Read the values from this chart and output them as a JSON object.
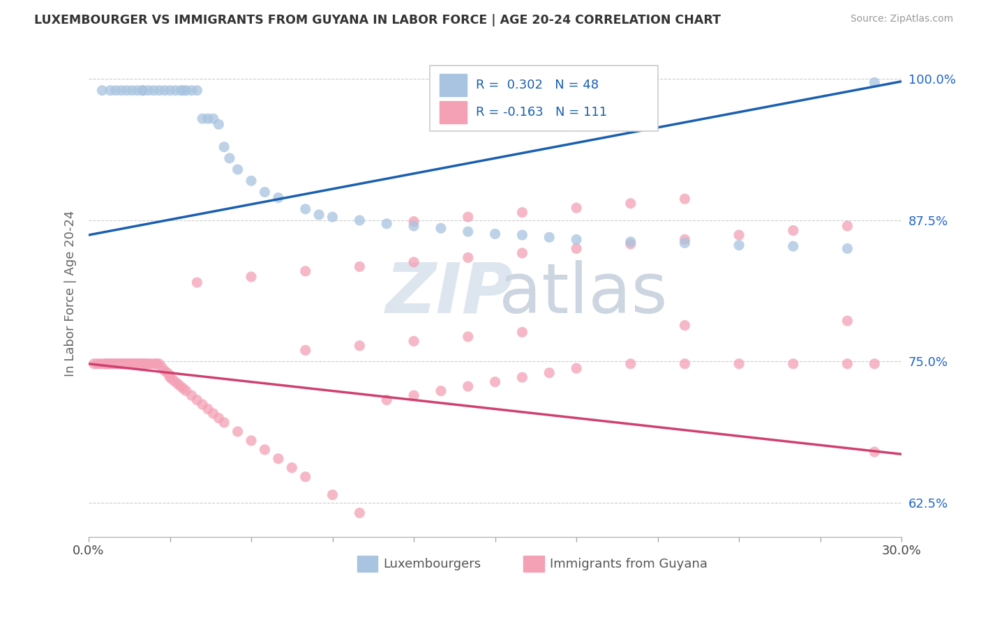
{
  "title": "LUXEMBOURGER VS IMMIGRANTS FROM GUYANA IN LABOR FORCE | AGE 20-24 CORRELATION CHART",
  "source": "Source: ZipAtlas.com",
  "ylabel": "In Labor Force | Age 20-24",
  "xlim": [
    0.0,
    0.3
  ],
  "ylim": [
    0.595,
    1.025
  ],
  "xtick_positions": [
    0.0,
    0.03,
    0.06,
    0.09,
    0.12,
    0.15,
    0.18,
    0.21,
    0.24,
    0.27,
    0.3
  ],
  "xticklabels_show": [
    "0.0%",
    "",
    "",
    "",
    "",
    "",
    "",
    "",
    "",
    "",
    "30.0%"
  ],
  "ytick_positions": [
    0.625,
    0.75,
    0.875,
    1.0
  ],
  "ytick_labels": [
    "62.5%",
    "75.0%",
    "87.5%",
    "100.0%"
  ],
  "blue_R": "0.302",
  "blue_N": "48",
  "pink_R": "-0.163",
  "pink_N": "111",
  "blue_color": "#a8c4e0",
  "pink_color": "#f4a0b5",
  "blue_line_color": "#1a5fb0",
  "pink_line_color": "#d04070",
  "legend_label_blue": "Luxembourgers",
  "legend_label_pink": "Immigrants from Guyana",
  "blue_trend_x": [
    0.0,
    0.3
  ],
  "blue_trend_y": [
    0.862,
    0.998
  ],
  "pink_trend_x": [
    0.0,
    0.3
  ],
  "pink_trend_y": [
    0.748,
    0.668
  ],
  "blue_scatter_x": [
    0.005,
    0.008,
    0.01,
    0.012,
    0.014,
    0.016,
    0.018,
    0.02,
    0.02,
    0.022,
    0.024,
    0.026,
    0.028,
    0.03,
    0.032,
    0.034,
    0.035,
    0.036,
    0.038,
    0.04,
    0.042,
    0.044,
    0.046,
    0.048,
    0.05,
    0.052,
    0.055,
    0.06,
    0.065,
    0.07,
    0.08,
    0.085,
    0.09,
    0.1,
    0.11,
    0.12,
    0.13,
    0.14,
    0.15,
    0.16,
    0.17,
    0.18,
    0.2,
    0.22,
    0.24,
    0.26,
    0.28,
    0.29
  ],
  "blue_scatter_y": [
    0.99,
    0.99,
    0.99,
    0.99,
    0.99,
    0.99,
    0.99,
    0.99,
    0.99,
    0.99,
    0.99,
    0.99,
    0.99,
    0.99,
    0.99,
    0.99,
    0.99,
    0.99,
    0.99,
    0.99,
    0.965,
    0.965,
    0.965,
    0.96,
    0.94,
    0.93,
    0.92,
    0.91,
    0.9,
    0.895,
    0.885,
    0.88,
    0.878,
    0.875,
    0.872,
    0.87,
    0.868,
    0.865,
    0.863,
    0.862,
    0.86,
    0.858,
    0.856,
    0.855,
    0.853,
    0.852,
    0.85,
    0.997
  ],
  "pink_scatter_x": [
    0.002,
    0.003,
    0.004,
    0.005,
    0.006,
    0.006,
    0.007,
    0.007,
    0.008,
    0.008,
    0.009,
    0.009,
    0.01,
    0.01,
    0.011,
    0.011,
    0.012,
    0.012,
    0.013,
    0.013,
    0.014,
    0.014,
    0.015,
    0.015,
    0.015,
    0.016,
    0.016,
    0.017,
    0.017,
    0.018,
    0.018,
    0.019,
    0.019,
    0.02,
    0.02,
    0.021,
    0.021,
    0.022,
    0.022,
    0.023,
    0.024,
    0.025,
    0.025,
    0.026,
    0.027,
    0.028,
    0.029,
    0.03,
    0.03,
    0.031,
    0.032,
    0.033,
    0.034,
    0.035,
    0.036,
    0.038,
    0.04,
    0.042,
    0.044,
    0.046,
    0.048,
    0.05,
    0.055,
    0.06,
    0.065,
    0.07,
    0.075,
    0.08,
    0.09,
    0.1,
    0.11,
    0.12,
    0.13,
    0.14,
    0.15,
    0.16,
    0.17,
    0.18,
    0.2,
    0.22,
    0.24,
    0.26,
    0.28,
    0.29,
    0.04,
    0.06,
    0.08,
    0.1,
    0.12,
    0.14,
    0.16,
    0.18,
    0.2,
    0.22,
    0.24,
    0.26,
    0.28,
    0.12,
    0.14,
    0.16,
    0.18,
    0.2,
    0.22,
    0.08,
    0.1,
    0.12,
    0.14,
    0.16,
    0.22,
    0.28,
    0.29
  ],
  "pink_scatter_y": [
    0.748,
    0.748,
    0.748,
    0.748,
    0.748,
    0.748,
    0.748,
    0.748,
    0.748,
    0.748,
    0.748,
    0.748,
    0.748,
    0.748,
    0.748,
    0.748,
    0.748,
    0.748,
    0.748,
    0.748,
    0.748,
    0.748,
    0.748,
    0.748,
    0.748,
    0.748,
    0.748,
    0.748,
    0.748,
    0.748,
    0.748,
    0.748,
    0.748,
    0.748,
    0.748,
    0.748,
    0.748,
    0.748,
    0.748,
    0.748,
    0.748,
    0.748,
    0.748,
    0.748,
    0.745,
    0.742,
    0.74,
    0.738,
    0.736,
    0.734,
    0.732,
    0.73,
    0.728,
    0.726,
    0.724,
    0.72,
    0.716,
    0.712,
    0.708,
    0.704,
    0.7,
    0.696,
    0.688,
    0.68,
    0.672,
    0.664,
    0.656,
    0.648,
    0.632,
    0.616,
    0.716,
    0.72,
    0.724,
    0.728,
    0.732,
    0.736,
    0.74,
    0.744,
    0.748,
    0.748,
    0.748,
    0.748,
    0.748,
    0.748,
    0.82,
    0.825,
    0.83,
    0.834,
    0.838,
    0.842,
    0.846,
    0.85,
    0.854,
    0.858,
    0.862,
    0.866,
    0.87,
    0.874,
    0.878,
    0.882,
    0.886,
    0.89,
    0.894,
    0.76,
    0.764,
    0.768,
    0.772,
    0.776,
    0.782,
    0.786,
    0.67
  ]
}
